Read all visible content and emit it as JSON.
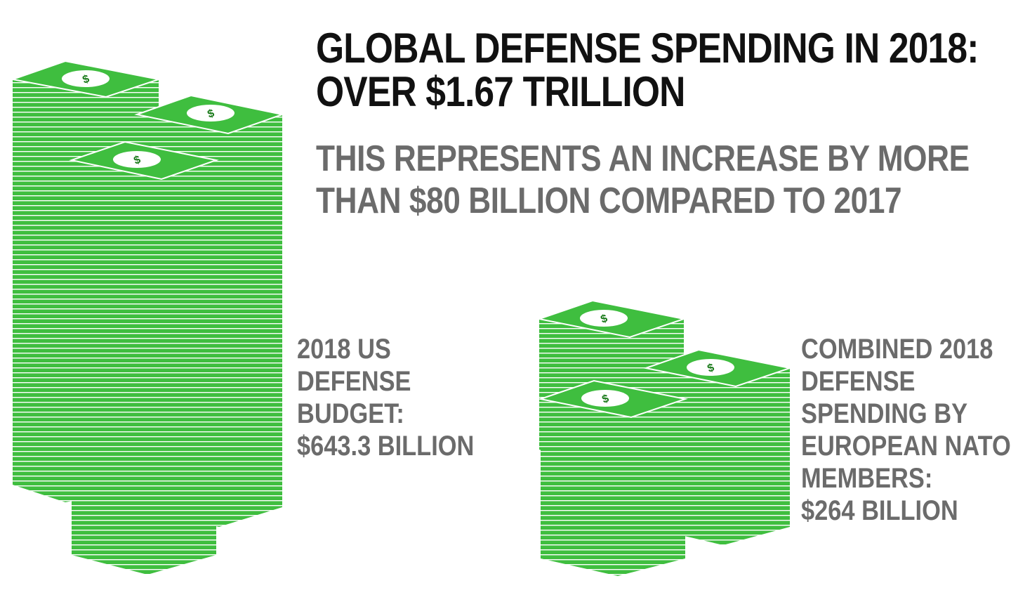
{
  "headline": {
    "line1": "GLOBAL DEFENSE SPENDING IN 2018:",
    "line2": "OVER $1.67 TRILLION"
  },
  "subhead": {
    "line1": "THIS REPRESENTS AN INCREASE BY MORE",
    "line2": "THAN $80 BILLION COMPARED TO 2017"
  },
  "us_stat": {
    "lines": [
      "2018 US",
      "DEFENSE",
      "BUDGET:",
      "$643.3 BILLION"
    ]
  },
  "nato_stat": {
    "lines": [
      "COMBINED 2018",
      "DEFENSE",
      "SPENDING BY",
      "EUROPEAN NATO",
      "MEMBERS:",
      "$264 BILLION"
    ]
  },
  "colors": {
    "bill_green": "#3fbe3f",
    "bill_green_dark": "#2fa42f",
    "bill_edge": "#ffffff",
    "headline": "#111111",
    "subtext": "#6b6b6b"
  },
  "icons": {
    "bill_symbol": "dollar-sign-icon"
  }
}
